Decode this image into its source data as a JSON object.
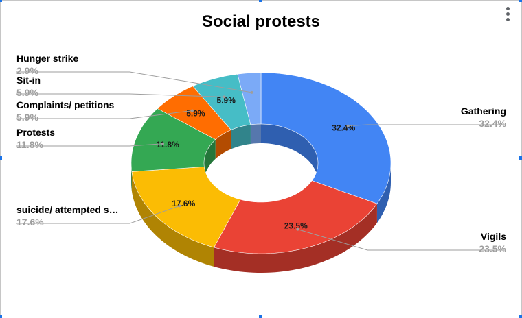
{
  "chart_data": {
    "type": "pie",
    "title": "Social protests",
    "slices": [
      {
        "label": "Gathering",
        "value": 32.4,
        "display": "32.4%",
        "color": "#4285f4",
        "dark": "#2f5fb0"
      },
      {
        "label": "Vigils",
        "value": 23.5,
        "display": "23.5%",
        "color": "#ea4335",
        "dark": "#a42f25"
      },
      {
        "label": "suicide/ attempted s…",
        "value": 17.6,
        "display": "17.6%",
        "color": "#fbbc04",
        "dark": "#b08403"
      },
      {
        "label": "Protests",
        "value": 11.8,
        "display": "11.8%",
        "color": "#34a853",
        "dark": "#24763a"
      },
      {
        "label": "Complaints/ petitions",
        "value": 5.9,
        "display": "5.9%",
        "color": "#ff6d01",
        "dark": "#b34c01"
      },
      {
        "label": "Sit-in",
        "value": 5.9,
        "display": "5.9%",
        "color": "#46bdc6",
        "dark": "#31848b"
      },
      {
        "label": "Hunger strike",
        "value": 2.9,
        "display": "2.9%",
        "color": "#7baaf7",
        "dark": "#5677ad"
      }
    ],
    "donut": true,
    "three_d": true,
    "legend": "callout-labels"
  },
  "toolbar": {
    "menu_icon": "more-vert-icon"
  }
}
